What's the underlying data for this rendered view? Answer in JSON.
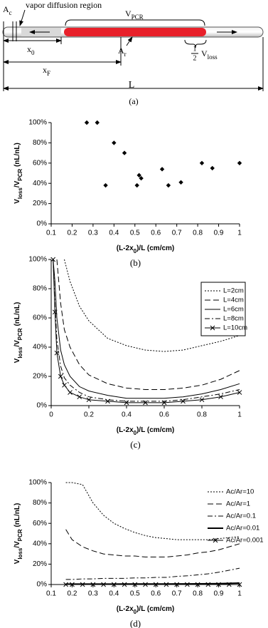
{
  "diagram": {
    "A_c": [
      "A",
      "c"
    ],
    "vapor_diffusion_region": "vapor diffusion region",
    "V_PCR": [
      "V",
      "PCR"
    ],
    "A_r": [
      "A",
      "r"
    ],
    "half_V_loss": {
      "num": "1",
      "den": "2",
      "v": [
        "V",
        "loss"
      ]
    },
    "x_0": [
      "x",
      "0"
    ],
    "x_F": [
      "x",
      "F"
    ],
    "L": "L",
    "caption": "(a)"
  },
  "chart_data": [
    {
      "type": "scatter",
      "caption": "(b)",
      "x_label": [
        "(L-2x",
        "0",
        ")/L (cm/cm)"
      ],
      "y_label": [
        "V",
        "loss",
        "/V",
        "PCR",
        " (nL/nL)"
      ],
      "x": [
        0.27,
        0.32,
        0.36,
        0.4,
        0.45,
        0.51,
        0.52,
        0.53,
        0.63,
        0.66,
        0.72,
        0.82,
        0.87,
        1.0
      ],
      "values": [
        100,
        100,
        38,
        80,
        70,
        38,
        48,
        45,
        54,
        38,
        41,
        60,
        55,
        60
      ],
      "color": "#000000",
      "xlim": [
        0.1,
        1
      ],
      "xticks": [
        0.1,
        0.2,
        0.3,
        0.4,
        0.5,
        0.6,
        0.7,
        0.8,
        0.9,
        1
      ],
      "ylim": [
        0,
        100
      ],
      "yticks": [
        {
          "value": 0,
          "label": "0%"
        },
        {
          "value": 20,
          "label": "20%"
        },
        {
          "value": 40,
          "label": "40%"
        },
        {
          "value": 60,
          "label": "60%"
        },
        {
          "value": 80,
          "label": "80%"
        },
        {
          "value": 100,
          "label": "100%"
        }
      ]
    },
    {
      "type": "line",
      "caption": "(c)",
      "x_label": [
        "(L-2x",
        "0",
        ")/L (cm/cm)"
      ],
      "y_label": [
        "V",
        "loss",
        "/V",
        "PCR",
        " (nL/nL)"
      ],
      "x": [
        0.01,
        0.02,
        0.03,
        0.05,
        0.07,
        0.1,
        0.15,
        0.2,
        0.3,
        0.4,
        0.5,
        0.6,
        0.7,
        0.8,
        0.9,
        1
      ],
      "series": [
        {
          "name": "L=2cm",
          "color": "#000000",
          "style": "dotted",
          "values": [
            null,
            null,
            null,
            null,
            100,
            85,
            68,
            58,
            46,
            41,
            38,
            37,
            38,
            41,
            44,
            48
          ]
        },
        {
          "name": "L=4cm",
          "color": "#000000",
          "style": "dashed",
          "values": [
            null,
            null,
            100,
            70,
            52,
            40,
            28,
            21,
            15,
            12,
            11,
            11,
            12,
            14,
            18,
            24
          ]
        },
        {
          "name": "L=6cm",
          "color": "#000000",
          "style": "solid",
          "values": [
            100,
            85,
            60,
            38,
            28,
            20,
            13,
            10,
            7,
            5,
            5,
            5,
            6,
            8,
            11,
            15
          ]
        },
        {
          "name": "L=8cm",
          "color": "#000000",
          "style": "dashdot",
          "values": [
            100,
            70,
            45,
            27,
            19,
            14,
            9,
            6,
            4,
            3,
            3,
            3,
            4,
            6,
            8,
            11
          ]
        },
        {
          "name": "L=10cm",
          "color": "#000000",
          "style": "solid",
          "marker": "x",
          "values": [
            100,
            64,
            36,
            20,
            14,
            9,
            6,
            4,
            3,
            2,
            2,
            2,
            3,
            4,
            6,
            9
          ]
        }
      ],
      "legend": "top-right",
      "legend_box": true,
      "xlim": [
        0,
        1
      ],
      "xticks": [
        0,
        0.2,
        0.4,
        0.6,
        0.8,
        1
      ],
      "ylim": [
        0,
        100
      ],
      "yticks": [
        {
          "value": 0,
          "label": "0%"
        },
        {
          "value": 20,
          "label": "20%"
        },
        {
          "value": 40,
          "label": "40%"
        },
        {
          "value": 60,
          "label": "60%"
        },
        {
          "value": 80,
          "label": "80%"
        },
        {
          "value": 100,
          "label": "100%"
        }
      ]
    },
    {
      "type": "line",
      "caption": "(d)",
      "x_label": [
        "(L-2x",
        "0",
        ")/L (cm/cm)"
      ],
      "y_label": [
        "V",
        "loss",
        "/V",
        "PCR",
        " (nL/nL)"
      ],
      "x": [
        0.17,
        0.2,
        0.25,
        0.3,
        0.35,
        0.4,
        0.45,
        0.5,
        0.55,
        0.6,
        0.65,
        0.7,
        0.75,
        0.8,
        0.85,
        0.9,
        0.95,
        1
      ],
      "series": [
        {
          "name": "Ac/Ar=10",
          "color": "#000000",
          "style": "dotted",
          "values": [
            100,
            100,
            98,
            80,
            68,
            60,
            55,
            51,
            48,
            46,
            45,
            44,
            44,
            44,
            44,
            45,
            46,
            47
          ]
        },
        {
          "name": "Ac/Ar=1",
          "color": "#000000",
          "style": "dashed",
          "values": [
            54,
            44,
            37,
            33,
            30,
            29,
            28,
            28,
            27,
            27,
            27,
            28,
            29,
            31,
            32,
            34,
            37,
            40
          ]
        },
        {
          "name": "Ac/Ar=0.1",
          "color": "#000000",
          "style": "dashdot",
          "values": [
            5,
            5,
            5.5,
            5.5,
            6,
            6,
            6,
            6.5,
            6.5,
            7,
            7,
            8,
            8.5,
            9.5,
            10.5,
            12,
            14,
            16
          ]
        },
        {
          "name": "Ac/Ar=0.01",
          "color": "#000000",
          "style": "thick",
          "values": [
            0.4,
            0.4,
            0.4,
            0.4,
            0.4,
            0.4,
            0.5,
            0.5,
            0.5,
            0.5,
            0.5,
            0.6,
            0.6,
            0.7,
            0.8,
            0.9,
            1.1,
            1.4
          ]
        },
        {
          "name": "Ac/Ar=0.001",
          "color": "#000000",
          "style": "solid",
          "marker": "x",
          "values": [
            0,
            0,
            0,
            0,
            0,
            0,
            0,
            0,
            0,
            0,
            0,
            0,
            0,
            0,
            0,
            0,
            0,
            0
          ]
        }
      ],
      "legend": "top-right",
      "legend_box": false,
      "xlim": [
        0.1,
        1
      ],
      "xticks": [
        0.1,
        0.2,
        0.3,
        0.4,
        0.5,
        0.6,
        0.7,
        0.8,
        0.9,
        1
      ],
      "ylim": [
        0,
        100
      ],
      "yticks": [
        {
          "value": 0,
          "label": "0%"
        },
        {
          "value": 20,
          "label": "20%"
        },
        {
          "value": 40,
          "label": "40%"
        },
        {
          "value": 60,
          "label": "60%"
        },
        {
          "value": 80,
          "label": "80%"
        },
        {
          "value": 100,
          "label": "100%"
        }
      ]
    }
  ]
}
